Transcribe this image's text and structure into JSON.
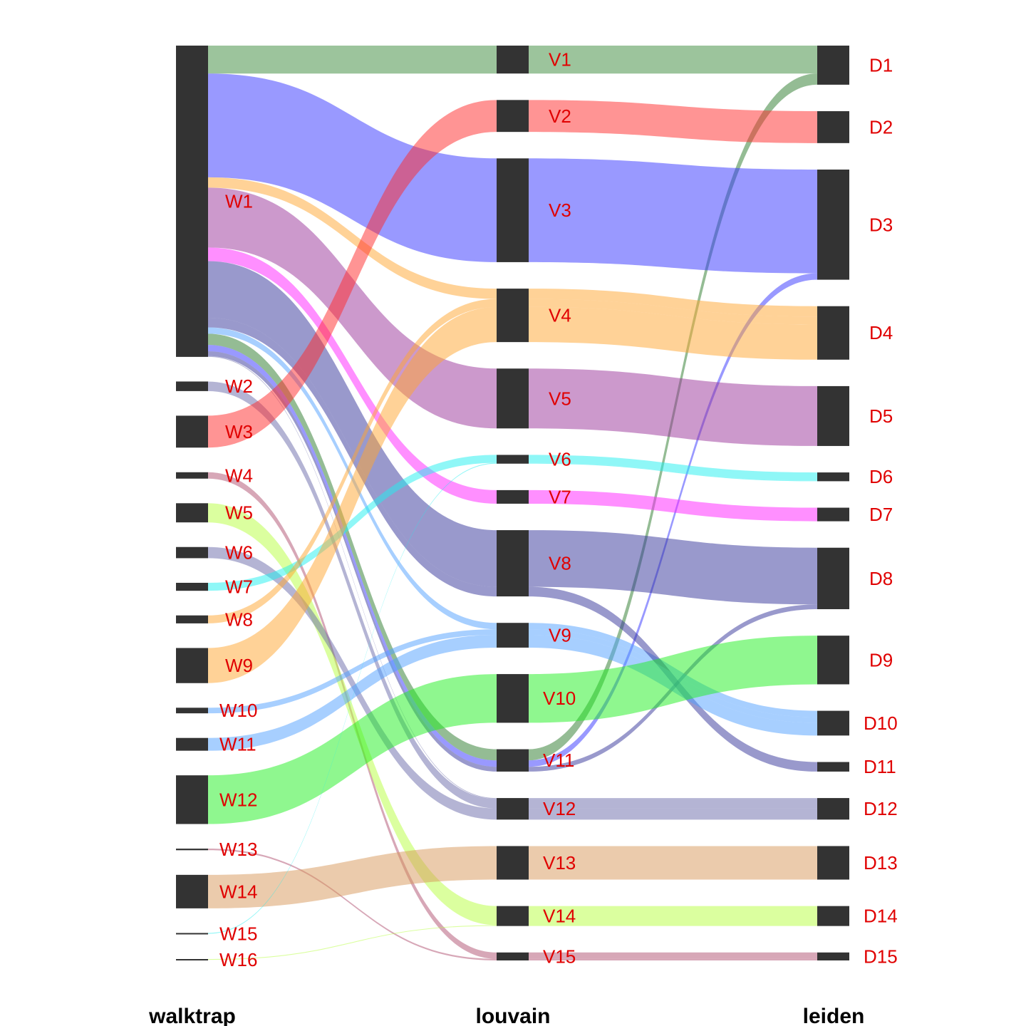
{
  "chart_data": {
    "type": "alluvial",
    "axes": [
      "walktrap",
      "louvain",
      "leiden"
    ],
    "walktrap": [
      "W1",
      "W2",
      "W3",
      "W4",
      "W5",
      "W6",
      "W7",
      "W8",
      "W9",
      "W10",
      "W11",
      "W12",
      "W13",
      "W14",
      "W15",
      "W16"
    ],
    "louvain": [
      "V1",
      "V2",
      "V3",
      "V4",
      "V5",
      "V6",
      "V7",
      "V8",
      "V9",
      "V10",
      "V11",
      "V12",
      "V13",
      "V14",
      "V15"
    ],
    "leiden": [
      "D1",
      "D2",
      "D3",
      "D4",
      "D5",
      "D6",
      "D7",
      "D8",
      "D9",
      "D10",
      "D11",
      "D12",
      "D13",
      "D14",
      "D15"
    ],
    "colors": {
      "V1": "#3a8a3a",
      "V2": "#ff2a2a",
      "V3": "#3333ff",
      "V4": "#ffa530",
      "V5": "#9a3399",
      "V6": "#20f0f0",
      "V7": "#ff20ff",
      "V8": "#333399",
      "V9": "#4fa0ff",
      "V10": "#20f020",
      "V11": "#2a7a2a",
      "V12": "#6a6aaa",
      "V13": "#d8985a",
      "V14": "#b8ff40",
      "V15": "#b0506f",
      "W2": "#6a6aaa",
      "W16": "#b8ff40"
    },
    "flows": [
      {
        "w": "W1",
        "v": "V1",
        "d": "D1",
        "value": 35,
        "color": "V1"
      },
      {
        "w": "W1",
        "v": "V11",
        "d": "D1",
        "value": 14,
        "color": "V11"
      },
      {
        "w": "W1",
        "v": "V3",
        "d": "D3",
        "value": 130,
        "color": "V3"
      },
      {
        "w": "W1",
        "v": "V11",
        "d": "D3",
        "value": 8,
        "color": "V3"
      },
      {
        "w": "W1",
        "v": "V4",
        "d": "D4",
        "value": 13,
        "color": "V4"
      },
      {
        "w": "W1",
        "v": "V5",
        "d": "D5",
        "value": 75,
        "color": "V5"
      },
      {
        "w": "W1",
        "v": "V7",
        "d": "D7",
        "value": 17,
        "color": "V7"
      },
      {
        "w": "W1",
        "v": "V8",
        "d": "D8",
        "value": 71,
        "color": "V8"
      },
      {
        "w": "W1",
        "v": "V11",
        "d": "D8",
        "value": 6,
        "color": "V8"
      },
      {
        "w": "W1",
        "v": "V9",
        "d": "D10",
        "value": 8,
        "color": "V9"
      },
      {
        "w": "W1",
        "v": "V8",
        "d": "D11",
        "value": 12,
        "color": "V8"
      },
      {
        "w": "W1",
        "v": "V12",
        "d": "D12",
        "value": 1,
        "color": "V12"
      },
      {
        "w": "W2",
        "v": "V12",
        "d": "D12",
        "value": 12,
        "color": "W2"
      },
      {
        "w": "W3",
        "v": "V2",
        "d": "D2",
        "value": 40,
        "color": "V2"
      },
      {
        "w": "W4",
        "v": "V15",
        "d": "D15",
        "value": 8,
        "color": "V15"
      },
      {
        "w": "W5",
        "v": "V14",
        "d": "D14",
        "value": 24,
        "color": "V14"
      },
      {
        "w": "W6",
        "v": "V12",
        "d": "D12",
        "value": 14,
        "color": "V12"
      },
      {
        "w": "W7",
        "v": "V6",
        "d": "D6",
        "value": 10,
        "color": "V6"
      },
      {
        "w": "W8",
        "v": "V4",
        "d": "D4",
        "value": 10,
        "color": "V4"
      },
      {
        "w": "W9",
        "v": "V4",
        "d": "D4",
        "value": 44,
        "color": "V4"
      },
      {
        "w": "W10",
        "v": "V9",
        "d": "D10",
        "value": 7,
        "color": "V9"
      },
      {
        "w": "W11",
        "v": "V9",
        "d": "D10",
        "value": 16,
        "color": "V9"
      },
      {
        "w": "W12",
        "v": "V10",
        "d": "D9",
        "value": 61,
        "color": "V10"
      },
      {
        "w": "W13",
        "v": "V15",
        "d": "D15",
        "value": 2,
        "color": "V15"
      },
      {
        "w": "W14",
        "v": "V13",
        "d": "D13",
        "value": 42,
        "color": "V13"
      },
      {
        "w": "W15",
        "v": "V6",
        "d": "D6",
        "value": 1,
        "color": "V6"
      },
      {
        "w": "W16",
        "v": "V14",
        "d": "D14",
        "value": 1,
        "color": "W16"
      }
    ]
  }
}
